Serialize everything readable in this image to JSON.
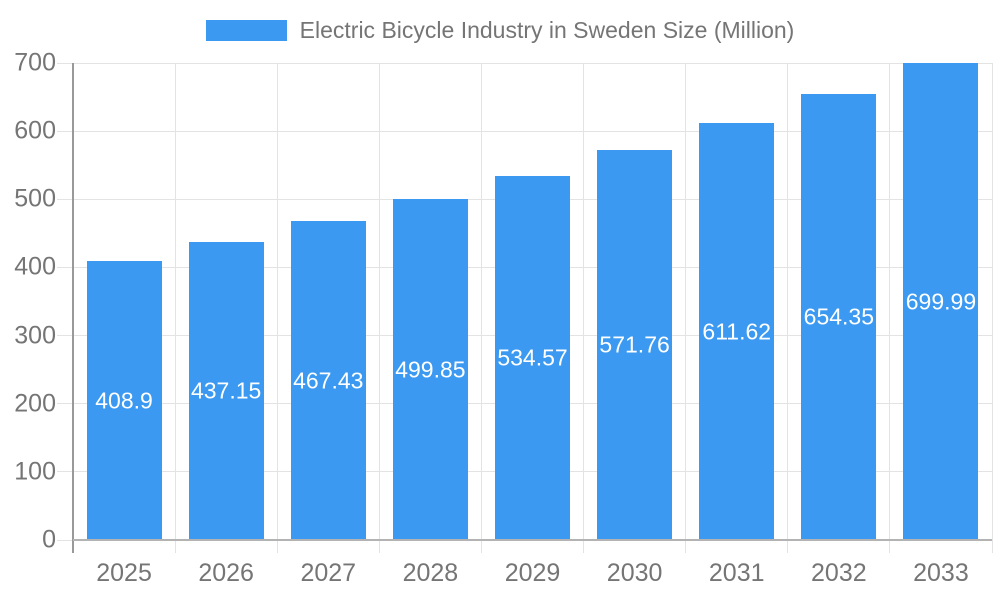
{
  "chart_data": {
    "type": "bar",
    "title": "Electric Bicycle Industry in Sweden Size (Million)",
    "legend_position": "top",
    "categories": [
      "2025",
      "2026",
      "2027",
      "2028",
      "2029",
      "2030",
      "2031",
      "2032",
      "2033"
    ],
    "values": [
      408.9,
      437.15,
      467.43,
      499.85,
      534.57,
      571.76,
      611.62,
      654.35,
      699.99
    ],
    "value_labels": [
      "408.9",
      "437.15",
      "467.43",
      "499.85",
      "534.57",
      "571.76",
      "611.62",
      "654.35",
      "699.99"
    ],
    "xlabel": "",
    "ylabel": "",
    "ylim": [
      0,
      700
    ],
    "yticks": [
      0,
      100,
      200,
      300,
      400,
      500,
      600,
      700
    ],
    "grid": true,
    "colors": {
      "bar": "#3b99f1",
      "gridline": "#e3e3e3",
      "y_axis_line": "#999999",
      "baseline": "#b3b3b3",
      "axis_text": "#757575",
      "bar_label_text": "#ffffff",
      "background": "#ffffff"
    }
  }
}
